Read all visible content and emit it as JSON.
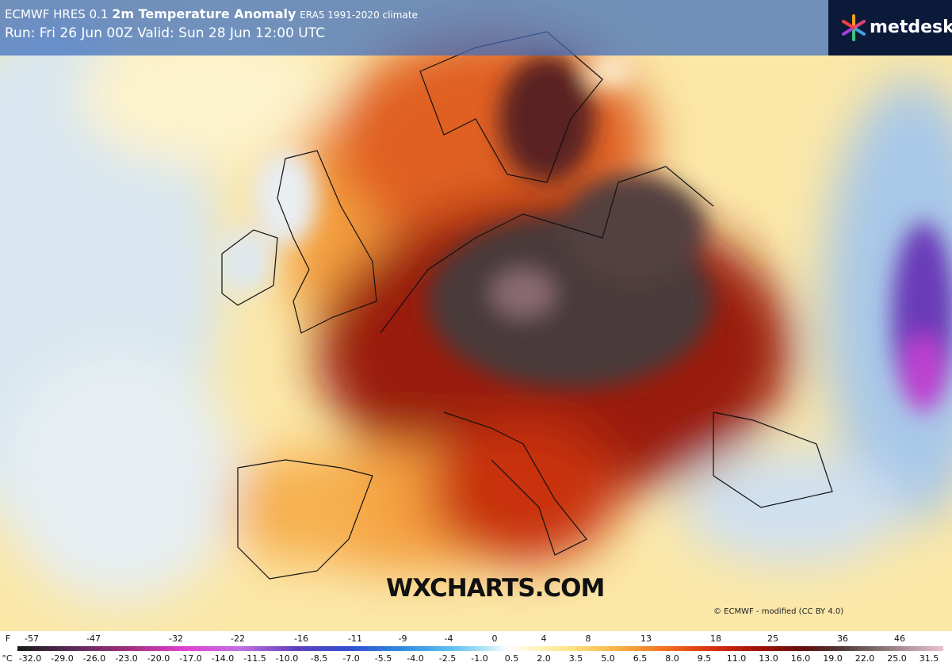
{
  "header": {
    "model": "ECMWF HRES 0.1",
    "field": "2m Temperature Anomaly",
    "climate": "ERA5 1991-2020 climate",
    "run": "Run: Fri 26 Jun 00Z Valid: Sun 28 Jun 12:00 UTC"
  },
  "logo": "metdesk",
  "watermark": "WXCHARTS.COM",
  "credit": "© ECMWF - modified (CC BY 4.0)",
  "colorbar": {
    "f_unit": "F",
    "f_labels": [
      "-57",
      "-47",
      "-32",
      "-22",
      "-16",
      "-11",
      "-9",
      "-4",
      "0",
      "4",
      "8",
      "13",
      "18",
      "25",
      "36",
      "46"
    ],
    "c_unit": "°C",
    "c_labels": [
      "-32.0",
      "-29.0",
      "-26.0",
      "-23.0",
      "-20.0",
      "-17.0",
      "-14.0",
      "-11.5",
      "-10.0",
      "-8.5",
      "-7.0",
      "-5.5",
      "-4.0",
      "-2.5",
      "-1.0",
      "0.5",
      "2.0",
      "3.5",
      "5.0",
      "6.5",
      "8.0",
      "9.5",
      "11.0",
      "13.0",
      "16.0",
      "19.0",
      "22.0",
      "25.0",
      "31.5"
    ]
  }
}
